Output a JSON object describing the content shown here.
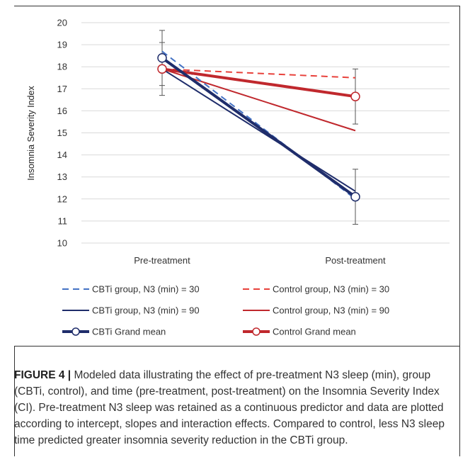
{
  "chart_data": {
    "type": "line",
    "categories": [
      "Pre-treatment",
      "Post-treatment"
    ],
    "ylabel": "Insomnia Severity Index",
    "xlabel": "",
    "ylim": [
      10,
      20
    ],
    "yticks": [
      10,
      11,
      12,
      13,
      14,
      15,
      16,
      17,
      18,
      19,
      20
    ],
    "grid": true,
    "legend_position": "bottom",
    "series": [
      {
        "name": "CBTi group, N3 (min) = 30",
        "values": [
          18.7,
          12.0
        ],
        "color": "#4472c4",
        "style": "dashed",
        "width": 2,
        "marker": false
      },
      {
        "name": "Control group, N3 (min) = 30",
        "values": [
          17.9,
          17.5
        ],
        "color": "#e8413b",
        "style": "dashed",
        "width": 2,
        "marker": false
      },
      {
        "name": "CBTi group, N3 (min) = 90",
        "values": [
          17.9,
          12.35
        ],
        "color": "#1f2d6b",
        "style": "solid",
        "width": 2,
        "marker": false
      },
      {
        "name": "Control group, N3 (min) = 90",
        "values": [
          17.9,
          15.1
        ],
        "color": "#c0282d",
        "style": "solid",
        "width": 2,
        "marker": false
      },
      {
        "name": "CBTi Grand mean",
        "values": [
          18.4,
          12.1
        ],
        "color": "#1f2d6b",
        "style": "solid",
        "width": 4,
        "marker": true,
        "error": [
          [
            17.15,
            19.65
          ],
          [
            10.85,
            13.35
          ]
        ]
      },
      {
        "name": "Control Grand mean",
        "values": [
          17.9,
          16.65
        ],
        "color": "#c0282d",
        "style": "solid",
        "width": 4,
        "marker": true,
        "error": [
          [
            16.7,
            19.1
          ],
          [
            15.4,
            17.9
          ]
        ]
      }
    ]
  },
  "caption": {
    "label": "FIGURE 4 |",
    "text": " Modeled data illustrating the effect of pre-treatment N3 sleep (min), group (CBTi, control), and time (pre-treatment, post-treatment) on the Insomnia Severity Index (CI). Pre-treatment N3 sleep was retained as a continuous predictor and data are plotted according to intercept, slopes and interaction effects. Compared to control, less N3 sleep time predicted greater insomnia severity reduction in the CBTi group."
  }
}
